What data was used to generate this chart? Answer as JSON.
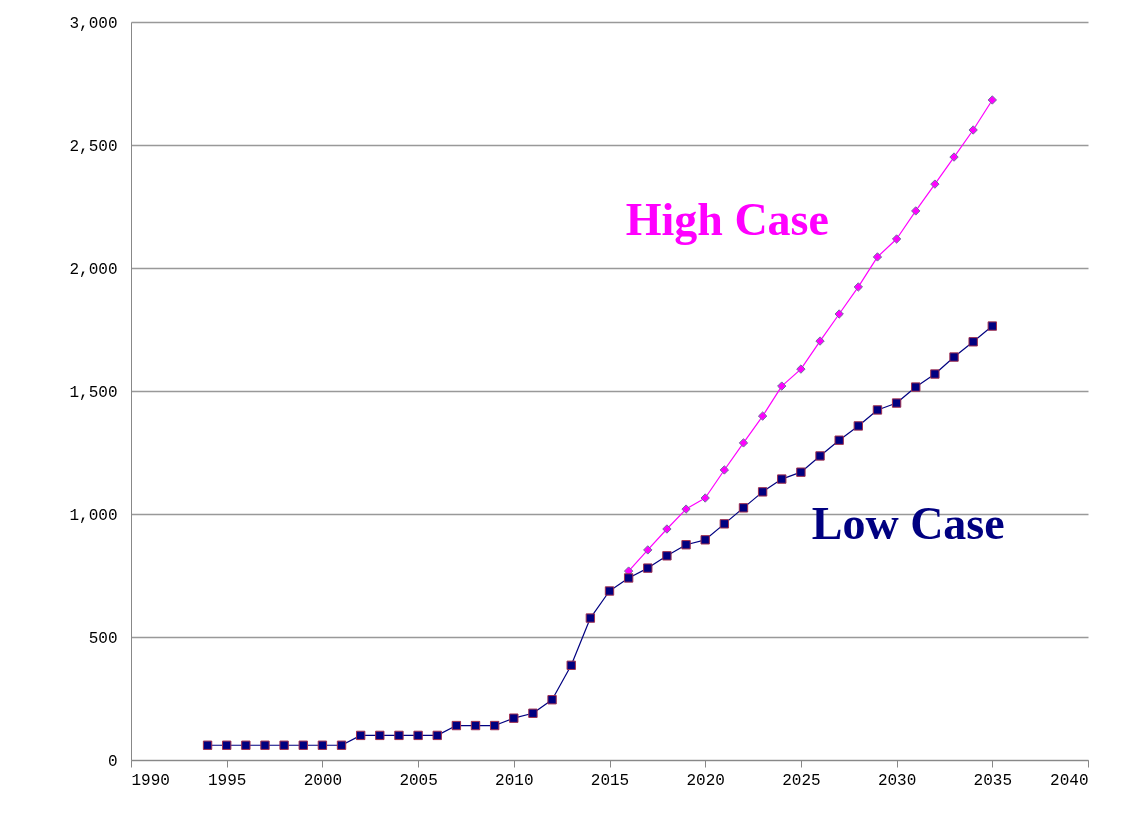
{
  "chart_data": {
    "type": "line",
    "x": [
      1994,
      1995,
      1996,
      1997,
      1998,
      1999,
      2000,
      2001,
      2002,
      2003,
      2004,
      2005,
      2006,
      2007,
      2008,
      2009,
      2010,
      2011,
      2012,
      2013,
      2014,
      2015,
      2016,
      2017,
      2018,
      2019,
      2020,
      2021,
      2022,
      2023,
      2024,
      2025,
      2026,
      2027,
      2028,
      2029,
      2030,
      2031,
      2032,
      2033,
      2034,
      2035
    ],
    "series": [
      {
        "name": "High Case",
        "color": "#ff00ff",
        "marker": "diamond",
        "x": [
          2016,
          2017,
          2018,
          2019,
          2020,
          2021,
          2022,
          2023,
          2024,
          2025,
          2026,
          2027,
          2028,
          2029,
          2030,
          2031,
          2032,
          2033,
          2034,
          2035
        ],
        "values": [
          768,
          854,
          939,
          1020,
          1065,
          1179,
          1289,
          1398,
          1520,
          1589,
          1703,
          1813,
          1923,
          2045,
          2118,
          2232,
          2341,
          2451,
          2561,
          2683
        ]
      },
      {
        "name": "Low Case",
        "color": "#000080",
        "marker": "square",
        "values": [
          60,
          60,
          60,
          60,
          60,
          60,
          60,
          60,
          100,
          100,
          100,
          100,
          100,
          140,
          140,
          140,
          170,
          190,
          245,
          385,
          577,
          687,
          740,
          780,
          830,
          875,
          895,
          960,
          1025,
          1090,
          1142,
          1170,
          1236,
          1300,
          1358,
          1423,
          1451,
          1516,
          1569,
          1638,
          1700,
          1764
        ]
      }
    ],
    "xlim": [
      1990,
      2040
    ],
    "xticks": [
      1990,
      1995,
      2000,
      2005,
      2010,
      2015,
      2020,
      2025,
      2030,
      2035,
      2040
    ],
    "ylim": [
      0,
      3000
    ],
    "yticks": [
      0,
      500,
      {
        "value": 1000,
        "label": "1,000"
      },
      {
        "value": 1500,
        "label": "1,500"
      },
      {
        "value": 2000,
        "label": "2,000"
      },
      {
        "value": 2500,
        "label": "2,500"
      },
      {
        "value": 3000,
        "label": "3,000"
      }
    ],
    "grid": "y",
    "line_style": "solid"
  }
}
